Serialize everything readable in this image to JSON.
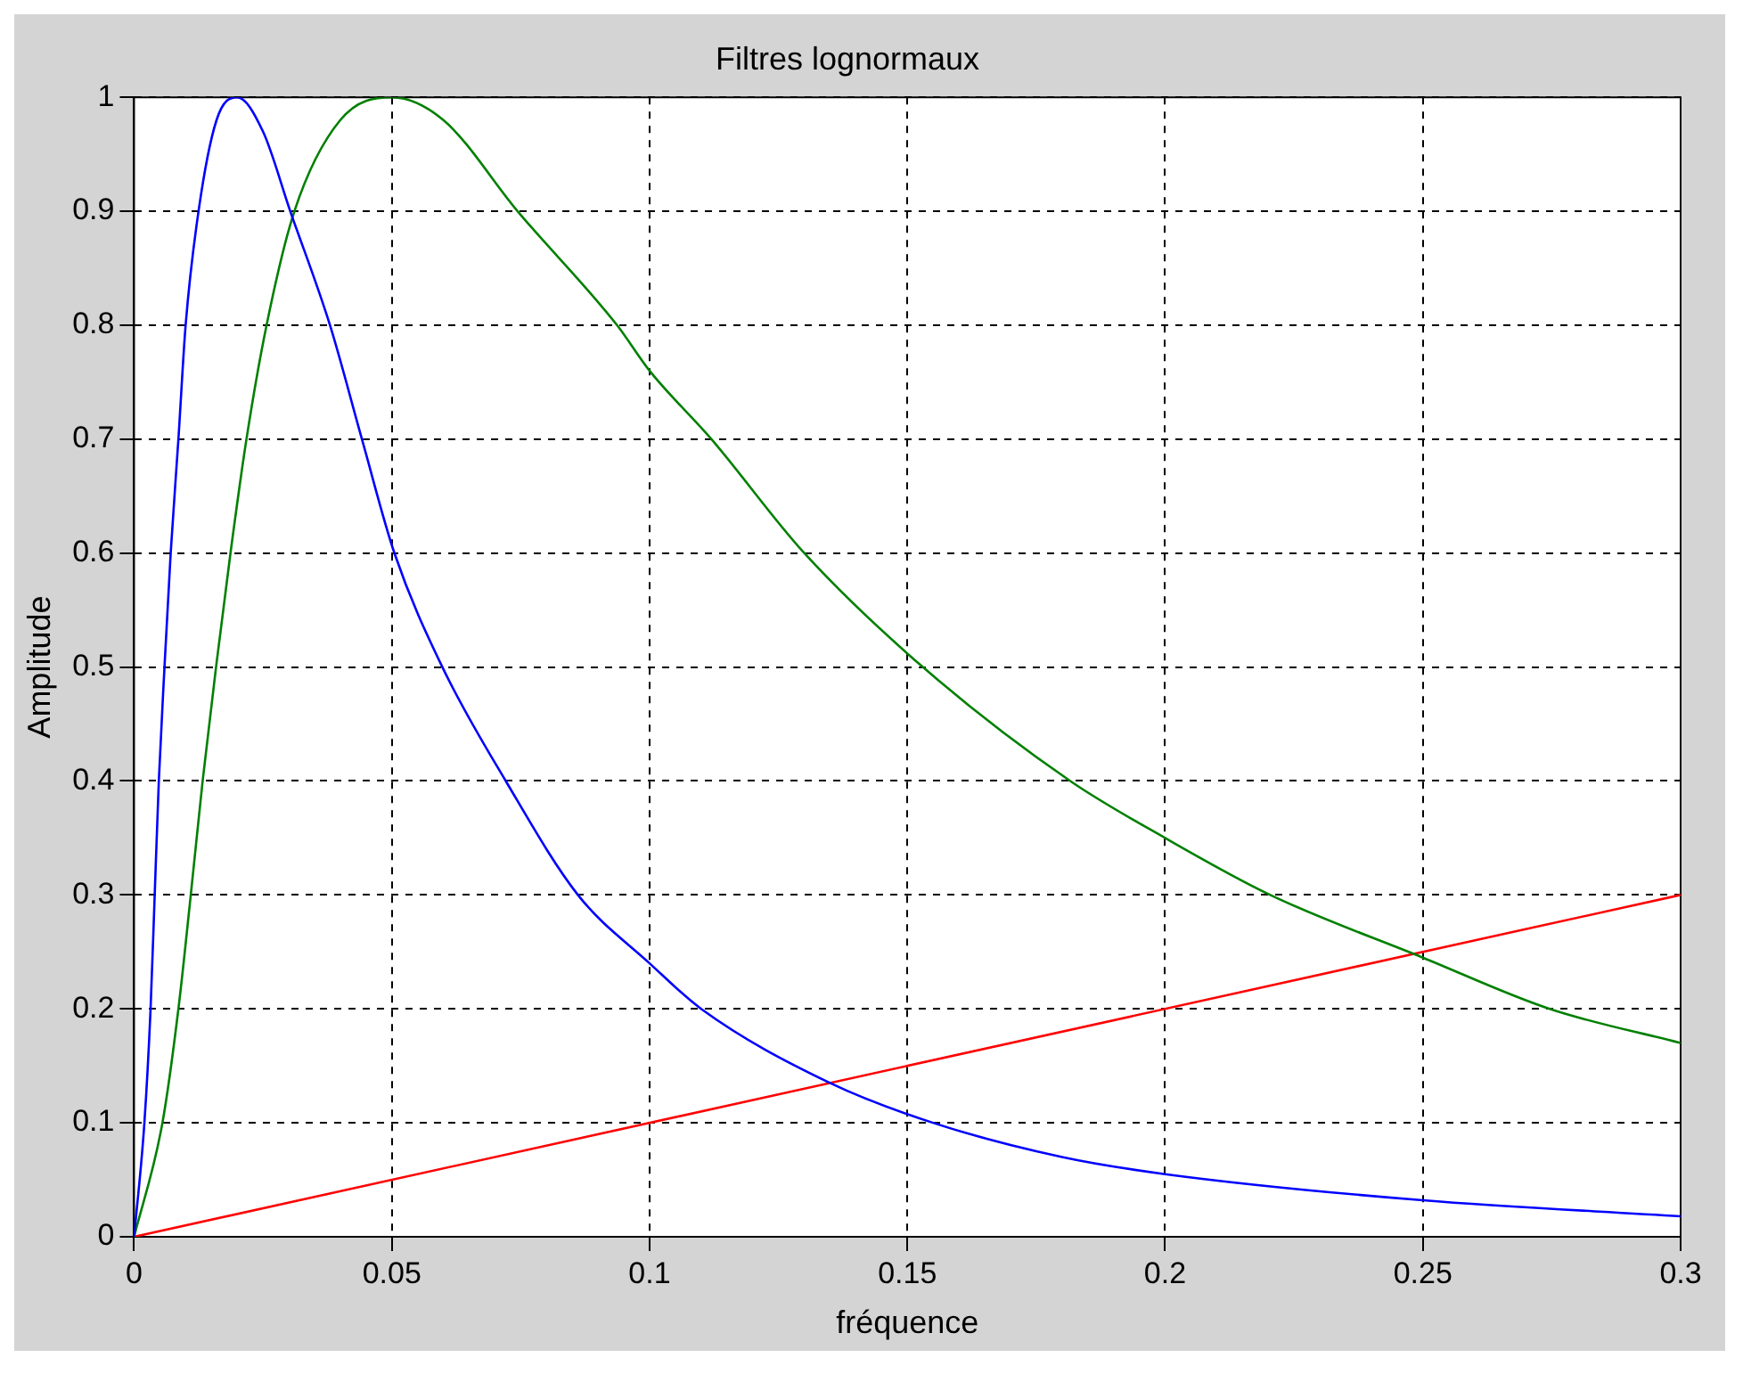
{
  "chart_data": {
    "type": "line",
    "title": "Filtres lognormaux",
    "xlabel": "fréquence",
    "ylabel": "Amplitude",
    "xlim": [
      0,
      0.3
    ],
    "xticks": [
      0,
      0.05,
      0.1,
      0.15,
      0.2,
      0.25,
      0.3
    ],
    "ylim": [
      0,
      1
    ],
    "yticks": [
      0,
      0.1,
      0.2,
      0.3,
      0.4,
      0.5,
      0.6,
      0.7,
      0.8,
      0.9,
      1
    ],
    "grid": true,
    "line_style": "solid",
    "marker": "none",
    "series": [
      {
        "color": "#0000ff",
        "x": [
          0,
          0.002,
          0.0032,
          0.004,
          0.0048,
          0.0059,
          0.0071,
          0.0086,
          0.01,
          0.0125,
          0.016,
          0.02,
          0.025,
          0.0303,
          0.038,
          0.0442,
          0.0505,
          0.0598,
          0.0721,
          0.0861,
          0.1,
          0.11,
          0.135,
          0.155,
          0.18,
          0.2,
          0.25,
          0.3
        ],
        "values": [
          0,
          0.1,
          0.2,
          0.3,
          0.4,
          0.5,
          0.6,
          0.7,
          0.8,
          0.9,
          0.98,
          1,
          0.97,
          0.9,
          0.8,
          0.7,
          0.6,
          0.5,
          0.4,
          0.3,
          0.24,
          0.2,
          0.135,
          0.1,
          0.07,
          0.055,
          0.032,
          0.018
        ]
      },
      {
        "color": "#008000",
        "x": [
          0,
          0.0055,
          0.0086,
          0.011,
          0.0133,
          0.0159,
          0.0187,
          0.0218,
          0.0257,
          0.0311,
          0.04,
          0.05,
          0.06,
          0.0744,
          0.0937,
          0.1,
          0.112,
          0.13,
          0.153,
          0.1816,
          0.2,
          0.2204,
          0.25,
          0.2746,
          0.3
        ],
        "values": [
          0,
          0.1,
          0.2,
          0.3,
          0.4,
          0.5,
          0.6,
          0.7,
          0.8,
          0.9,
          0.98,
          1,
          0.98,
          0.9,
          0.8,
          0.76,
          0.7,
          0.6,
          0.5,
          0.4,
          0.35,
          0.3,
          0.245,
          0.2,
          0.17
        ]
      },
      {
        "color": "#ff0000",
        "x": [
          0,
          0.3
        ],
        "values": [
          0,
          0.3
        ]
      }
    ]
  }
}
